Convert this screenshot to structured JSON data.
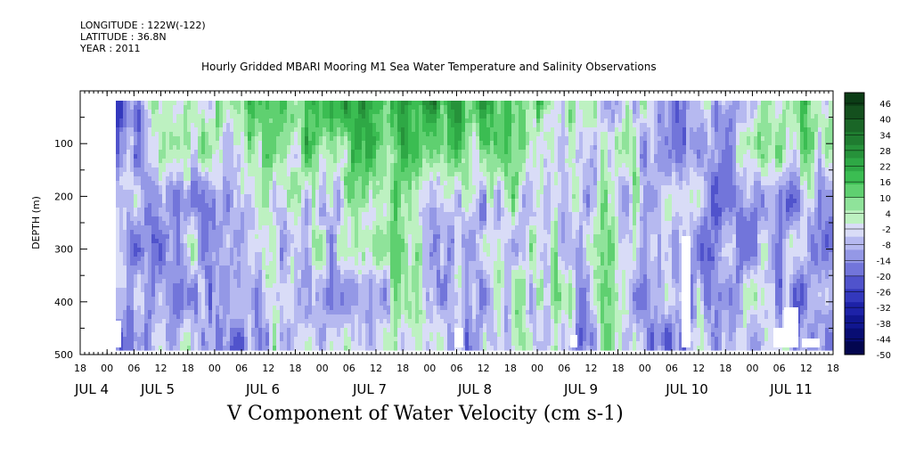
{
  "header": {
    "longitude": "LONGITUDE : 122W(-122)",
    "latitude": "LATITUDE : 36.8N",
    "year": "YEAR : 2011"
  },
  "chart_data": {
    "type": "heatmap",
    "title": "Hourly Gridded MBARI Mooring M1 Sea Water Temperature and Salinity Observations",
    "xlabel": "V Component of Water Velocity (cm s-1)",
    "ylabel": "DEPTH (m)",
    "x_hour_ticks": [
      "18",
      "00",
      "06",
      "12",
      "18",
      "00",
      "06",
      "12",
      "18",
      "00",
      "06",
      "12",
      "18",
      "00",
      "06",
      "12",
      "18",
      "00",
      "06",
      "12",
      "18",
      "00",
      "06",
      "12",
      "18",
      "00",
      "06",
      "12",
      "18"
    ],
    "x_date_labels": [
      "JUL 4",
      "JUL 5",
      "JUL 6",
      "JUL 7",
      "JUL 8",
      "JUL 9",
      "JUL 10",
      "JUL 11"
    ],
    "y_ticks": [
      100,
      200,
      300,
      400,
      500
    ],
    "ylim": [
      500,
      0
    ],
    "colorbar": {
      "labels": [
        "46",
        "40",
        "34",
        "28",
        "22",
        "16",
        "10",
        "4",
        "-2",
        "-8",
        "-14",
        "-20",
        "-26",
        "-32",
        "-38",
        "-44",
        "-50"
      ],
      "colors": [
        "#0c3d16",
        "#14501e",
        "#1a6627",
        "#1f7c30",
        "#26923a",
        "#2ea845",
        "#3bbd52",
        "#5fd070",
        "#8fe39a",
        "#bdf1c1",
        "#d9dcf7",
        "#b6b9f0",
        "#9498e6",
        "#7275da",
        "#5053cc",
        "#3338bd",
        "#1d22a8",
        "#10168f",
        "#080d73",
        "#03064f"
      ],
      "range": [
        -50,
        52
      ]
    },
    "time_range_hours": {
      "start": "JUL 3 18:00",
      "end": "JUL 11 18:00"
    },
    "pattern_summary": {
      "time_fraction": [
        0.0,
        0.05,
        0.1,
        0.15,
        0.2,
        0.25,
        0.3,
        0.35,
        0.4,
        0.45,
        0.5,
        0.55,
        0.6,
        0.65,
        0.7,
        0.75,
        0.8,
        0.85,
        0.9,
        0.95,
        1.0
      ],
      "surface_velocity": [
        -14,
        -4,
        2,
        6,
        12,
        18,
        22,
        26,
        24,
        22,
        20,
        16,
        10,
        4,
        -2,
        -6,
        -10,
        -8,
        6,
        12,
        10
      ],
      "deep_velocity": [
        -12,
        -10,
        -4,
        -14,
        -6,
        2,
        -8,
        -4,
        4,
        -6,
        -10,
        -4,
        2,
        -6,
        4,
        -12,
        -8,
        -14,
        -4,
        -10,
        -12
      ]
    }
  }
}
